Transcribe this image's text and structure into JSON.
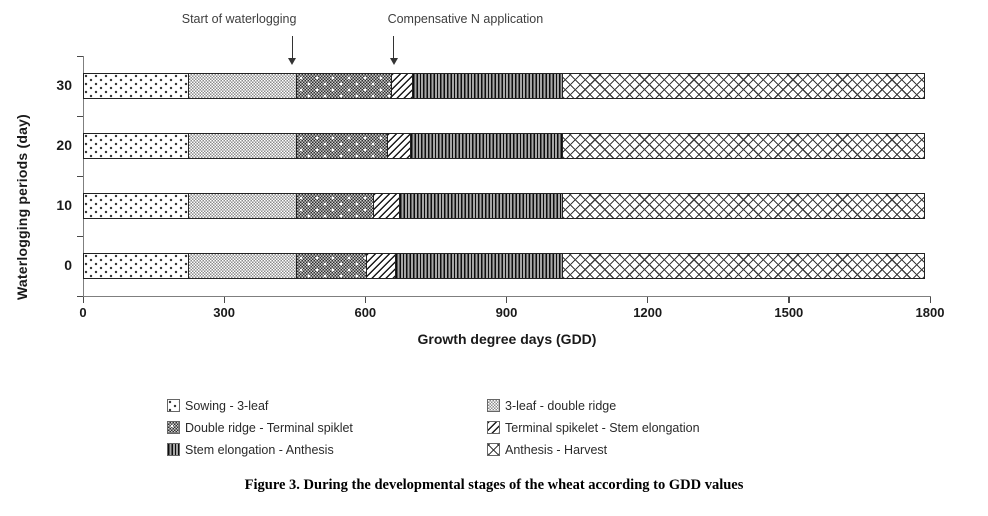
{
  "figure": {
    "caption": "Figure 3.  During the developmental stages of the wheat according to GDD values"
  },
  "chart_data": {
    "type": "bar",
    "variant": "horizontal-stacked",
    "title": "",
    "xlabel": "Growth degree days (GDD)",
    "ylabel": "Waterlogging periods (day)",
    "xlim": [
      0,
      1800
    ],
    "x_ticks": [
      0,
      300,
      600,
      900,
      1200,
      1500,
      1800
    ],
    "grid": false,
    "legend_position": "bottom-two-columns",
    "categories_top_to_bottom": [
      "30",
      "20",
      "10",
      "0"
    ],
    "stages": [
      {
        "label": "Sowing - 3-leaf",
        "pattern": "sparse-dots"
      },
      {
        "label": "3-leaf - double ridge",
        "pattern": "fine-checker"
      },
      {
        "label": "Double ridge - Terminal spiklet",
        "pattern": "dark-checker"
      },
      {
        "label": "Terminal spikelet - Stem elongation",
        "pattern": "diag-hatch"
      },
      {
        "label": "Stem elongation - Anthesis",
        "pattern": "vert-lines"
      },
      {
        "label": "Anthesis - Harvest",
        "pattern": "cross-hatch"
      }
    ],
    "stage_boundaries_gdd": {
      "0": [
        0,
        220,
        450,
        600,
        660,
        1015,
        1790
      ],
      "10": [
        0,
        220,
        450,
        615,
        670,
        1015,
        1790
      ],
      "20": [
        0,
        220,
        450,
        645,
        693,
        1015,
        1790
      ],
      "30": [
        0,
        220,
        450,
        652,
        698,
        1015,
        1790
      ]
    },
    "annotations": [
      {
        "label": "Start of waterlogging",
        "gdd": 445,
        "align": "right"
      },
      {
        "label": "Compensative N application",
        "gdd": 660,
        "align": "left"
      }
    ]
  }
}
